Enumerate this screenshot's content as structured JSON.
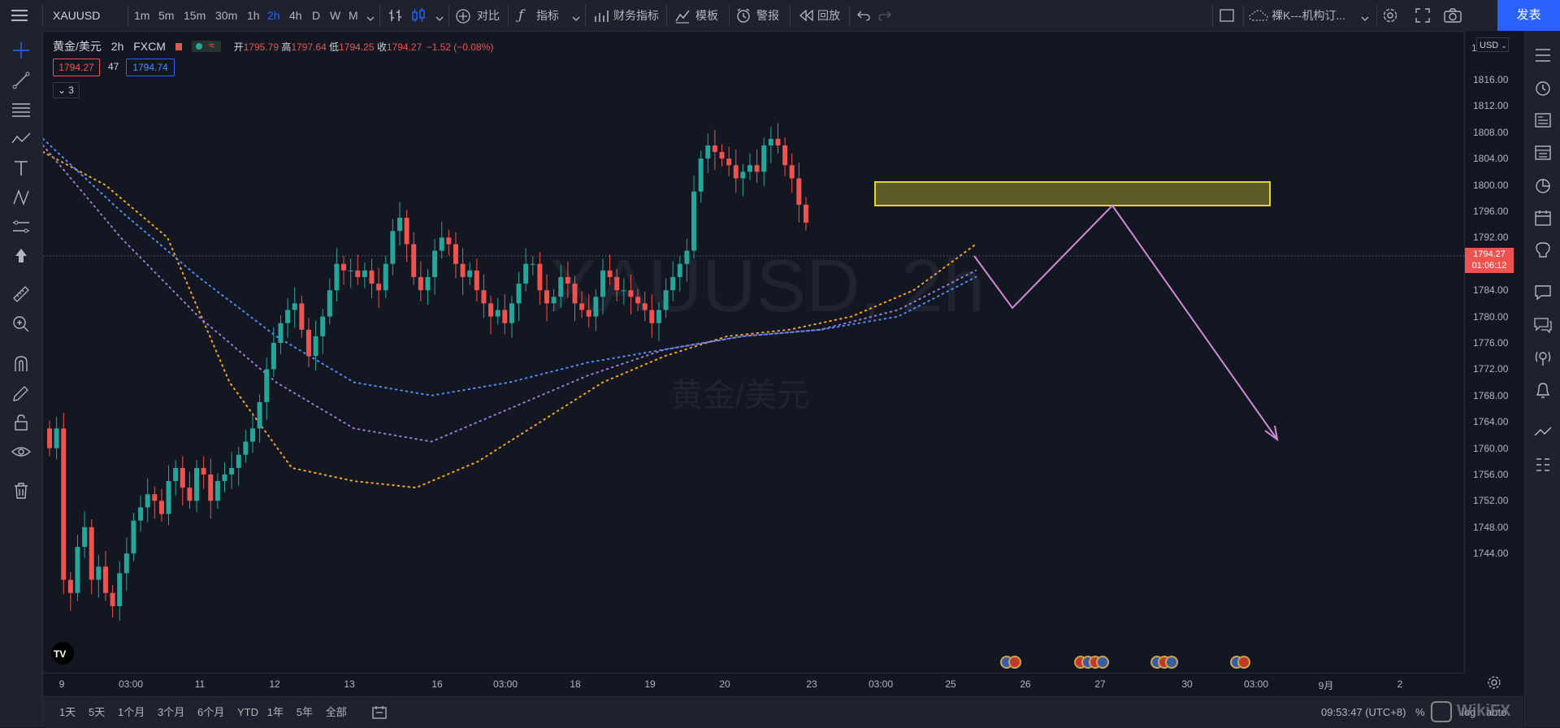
{
  "toolbar": {
    "symbol": "XAUUSD",
    "intervals": [
      "1m",
      "5m",
      "15m",
      "30m",
      "1h",
      "2h",
      "4h",
      "D",
      "W",
      "M"
    ],
    "active_interval": "2h",
    "compare": "对比",
    "indicators": "指标",
    "financials": "财务指标",
    "templates": "模板",
    "alert": "警报",
    "replay": "回放",
    "layout_name": "裸K---机构订...",
    "publish": "发表"
  },
  "legend": {
    "title": "黄金/美元",
    "interval": "2h",
    "exchange": "FXCM",
    "open_label": "开",
    "open": "1795.79",
    "high_label": "高",
    "high": "1797.64",
    "low_label": "低",
    "low": "1794.25",
    "close_label": "收",
    "close": "1794.27",
    "change": "−1.52 (−0.08%)",
    "bid": "1794.27",
    "spread": "47",
    "ask": "1794.74",
    "collapse_count": "3"
  },
  "watermark": {
    "main": "XAUUSD, 2h",
    "sub": "黄金/美元"
  },
  "price_axis": {
    "currency": "USD",
    "top_tick": "1",
    "ticks": [
      "1816.00",
      "1812.00",
      "1808.00",
      "1804.00",
      "1800.00",
      "1796.00",
      "1792.00",
      "1788.00",
      "1784.00",
      "1780.00",
      "1776.00",
      "1772.00",
      "1768.00",
      "1764.00",
      "1760.00",
      "1756.00",
      "1752.00",
      "1748.00",
      "1744.00"
    ],
    "current_price": "1794.27",
    "countdown": "01:06:12"
  },
  "time_axis": {
    "labels": [
      "9",
      "03:00",
      "11",
      "12",
      "13",
      "16",
      "03:00",
      "18",
      "19",
      "20",
      "23",
      "03:00",
      "25",
      "26",
      "27",
      "30",
      "03:00",
      "9月",
      "2"
    ]
  },
  "bottom": {
    "ranges": [
      "1天",
      "5天",
      "1个月",
      "3个月",
      "6个月",
      "YTD",
      "1年",
      "5年",
      "全部"
    ],
    "clock": "09:53:47 (UTC+8)",
    "percent": "%",
    "log": "log",
    "auto": "auto",
    "brand": "WikiFX"
  },
  "colors": {
    "up": "#26a69a",
    "down": "#ef5350",
    "ma_orange": "#f5a623",
    "ma_purple": "#9c7bd6",
    "ma_blue": "#4f8ef7",
    "zone": "#e5d72a",
    "projection": "#d18ad9",
    "accent": "#2962ff"
  },
  "chart_data": {
    "type": "candlestick",
    "symbol": "XAUUSD",
    "interval": "2h",
    "ylim": [
      1742,
      1820
    ],
    "price_ticks": [
      1816,
      1812,
      1808,
      1804,
      1800,
      1796,
      1792,
      1788,
      1784,
      1780,
      1776,
      1772,
      1768,
      1764,
      1760,
      1756,
      1752,
      1748,
      1744
    ],
    "last_price": 1794.27,
    "candles_close_approx": [
      1760,
      1763,
      1740,
      1738,
      1745,
      1748,
      1740,
      1742,
      1738,
      1736,
      1741,
      1744,
      1749,
      1751,
      1753,
      1752,
      1750,
      1755,
      1757,
      1754,
      1752,
      1757,
      1756,
      1752,
      1755,
      1756,
      1757,
      1759,
      1761,
      1763,
      1767,
      1772,
      1776,
      1779,
      1781,
      1782,
      1778,
      1774,
      1777,
      1780,
      1784,
      1788,
      1787,
      1787,
      1786,
      1787,
      1785,
      1784,
      1788,
      1793,
      1795,
      1791,
      1786,
      1784,
      1786,
      1790,
      1792,
      1791,
      1788,
      1786,
      1787,
      1784,
      1782,
      1780,
      1781,
      1779,
      1782,
      1785,
      1788,
      1788,
      1784,
      1782,
      1783,
      1786,
      1785,
      1782,
      1781,
      1780,
      1783,
      1787,
      1786,
      1784,
      1784,
      1783,
      1782,
      1781,
      1779,
      1781,
      1784,
      1786,
      1788,
      1790,
      1799,
      1804,
      1806,
      1805,
      1804,
      1803,
      1801,
      1802,
      1803,
      1802,
      1806,
      1807,
      1806,
      1803,
      1801,
      1797,
      1794.27
    ],
    "moving_averages": [
      {
        "color": "orange",
        "points": [
          [
            1805,
            1805
          ],
          [
            1800,
            1800
          ],
          [
            1790,
            1792
          ],
          [
            1770,
            1770
          ],
          [
            1757,
            1757
          ],
          [
            1755,
            1755
          ],
          [
            1754,
            1754
          ],
          [
            1758,
            1758
          ],
          [
            1764,
            1764
          ],
          [
            1770,
            1770
          ],
          [
            1774,
            1774
          ],
          [
            1777,
            1777
          ],
          [
            1778,
            1778
          ],
          [
            1780,
            1780
          ],
          [
            1784,
            1784
          ],
          [
            1791,
            1791
          ]
        ]
      },
      {
        "color": "purple",
        "points": [
          [
            1806,
            1806
          ],
          [
            1792,
            1792
          ],
          [
            1780,
            1780
          ],
          [
            1770,
            1770
          ],
          [
            1763,
            1763
          ],
          [
            1761,
            1761
          ],
          [
            1766,
            1766
          ],
          [
            1771,
            1771
          ],
          [
            1775,
            1775
          ],
          [
            1777,
            1777
          ],
          [
            1778,
            1778
          ],
          [
            1781,
            1781
          ],
          [
            1787,
            1787
          ]
        ]
      },
      {
        "color": "blue",
        "points": [
          [
            1807,
            1807
          ],
          [
            1796,
            1796
          ],
          [
            1786,
            1786
          ],
          [
            1777,
            1777
          ],
          [
            1770,
            1770
          ],
          [
            1768,
            1768
          ],
          [
            1770,
            1770
          ],
          [
            1773,
            1773
          ],
          [
            1775,
            1775
          ],
          [
            1777,
            1777
          ],
          [
            1778,
            1778
          ],
          [
            1780,
            1780
          ],
          [
            1786,
            1786
          ]
        ]
      }
    ],
    "supply_zone": {
      "top": 1803.4,
      "bottom": 1800.5
    },
    "projection_path": [
      1794.2,
      1788,
      1800.3,
      1771.5
    ]
  }
}
